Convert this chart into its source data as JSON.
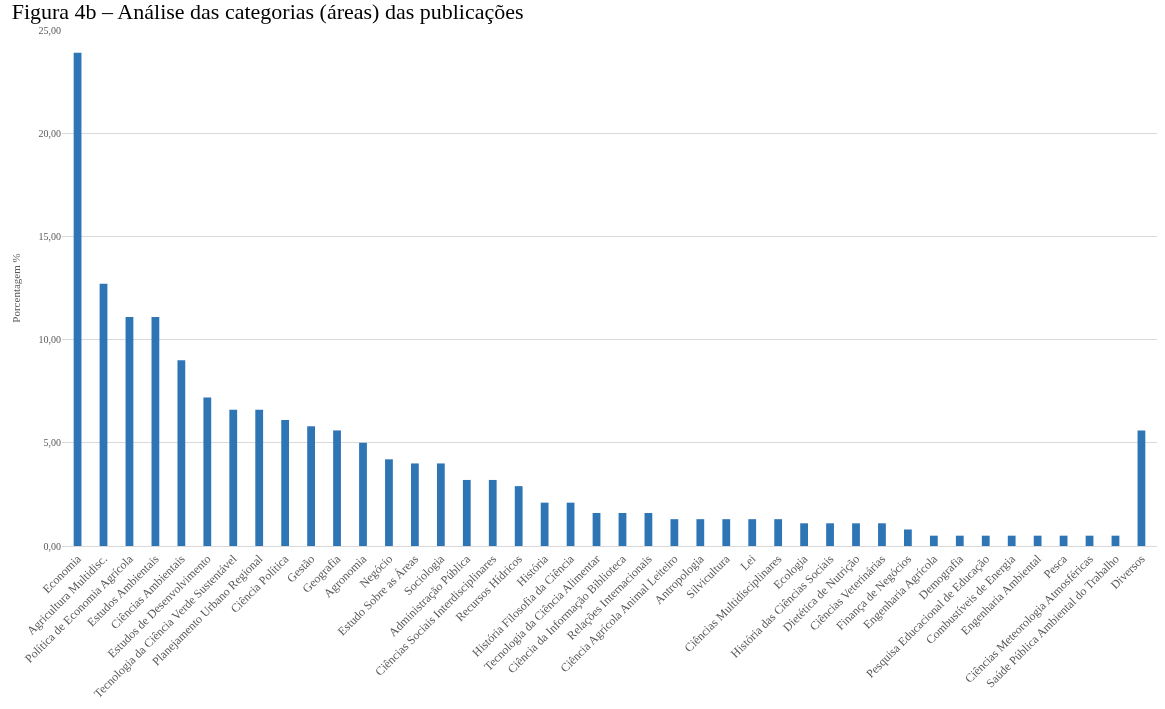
{
  "chart_data": {
    "type": "bar",
    "title": "Figura 4b – Análise das categorias (áreas) das publicações",
    "ylabel": "Porcentagem %",
    "categories": [
      "Economia",
      "Agricultura Multidisc.",
      "Política de Economia Agrícola",
      "Estudos Ambientais",
      "Ciências Ambientais",
      "Estudos de Desenvolvimento",
      "Tecnologia da Ciência Verde Sustentável",
      "Planejamento Urbano Regional",
      "Ciência Política",
      "Gestão",
      "Geografia",
      "Agronomia",
      "Negócio",
      "Estudo Sobre as Áreas",
      "Sociologia",
      "Administração Pública",
      "Ciências Sociais Interdisciplinares",
      "Recursos Hídricos",
      "História",
      "História Filosofia da Ciência",
      "Tecnologia da Ciência Alimentar",
      "Ciência da Informação Biblioteca",
      "Relações Internacionais",
      "Ciência Agrícola Animal Leiteiro",
      "Antropologia",
      "Silvicultura",
      "Lei",
      "Ciências Multidisciplinares",
      "Ecologia",
      "História das Ciências Sociais",
      "Dietética de Nutrição",
      "Ciências Veterinárias",
      "Finança de Negócios",
      "Engenharia Agrícola",
      "Demografia",
      "Pesquisa Educacional de Educação",
      "Combustíveis de Energia",
      "Engenharia Ambiental",
      "Pesca",
      "Ciências Meteorologia Atmosféricas",
      "Saúde Pública Ambiental do Trabalho",
      "Diversos"
    ],
    "values": [
      23.9,
      12.7,
      11.1,
      11.1,
      9.0,
      7.2,
      6.6,
      6.6,
      6.1,
      5.8,
      5.6,
      5.0,
      4.2,
      4.0,
      4.0,
      3.2,
      3.2,
      2.9,
      2.1,
      2.1,
      1.6,
      1.6,
      1.6,
      1.3,
      1.3,
      1.3,
      1.3,
      1.3,
      1.1,
      1.1,
      1.1,
      1.1,
      0.8,
      0.5,
      0.5,
      0.5,
      0.5,
      0.5,
      0.5,
      0.5,
      0.5,
      5.6
    ],
    "color": "#2e75b6",
    "ylim": [
      0,
      25
    ],
    "yticks": [
      {
        "value": 0,
        "label": "0,00"
      },
      {
        "value": 5,
        "label": "5,00"
      },
      {
        "value": 10,
        "label": "10,00"
      },
      {
        "value": 15,
        "label": "15,00"
      },
      {
        "value": 20,
        "label": "20,00"
      },
      {
        "value": 25,
        "label": "25,00"
      }
    ],
    "grid": "y",
    "legend": false
  }
}
